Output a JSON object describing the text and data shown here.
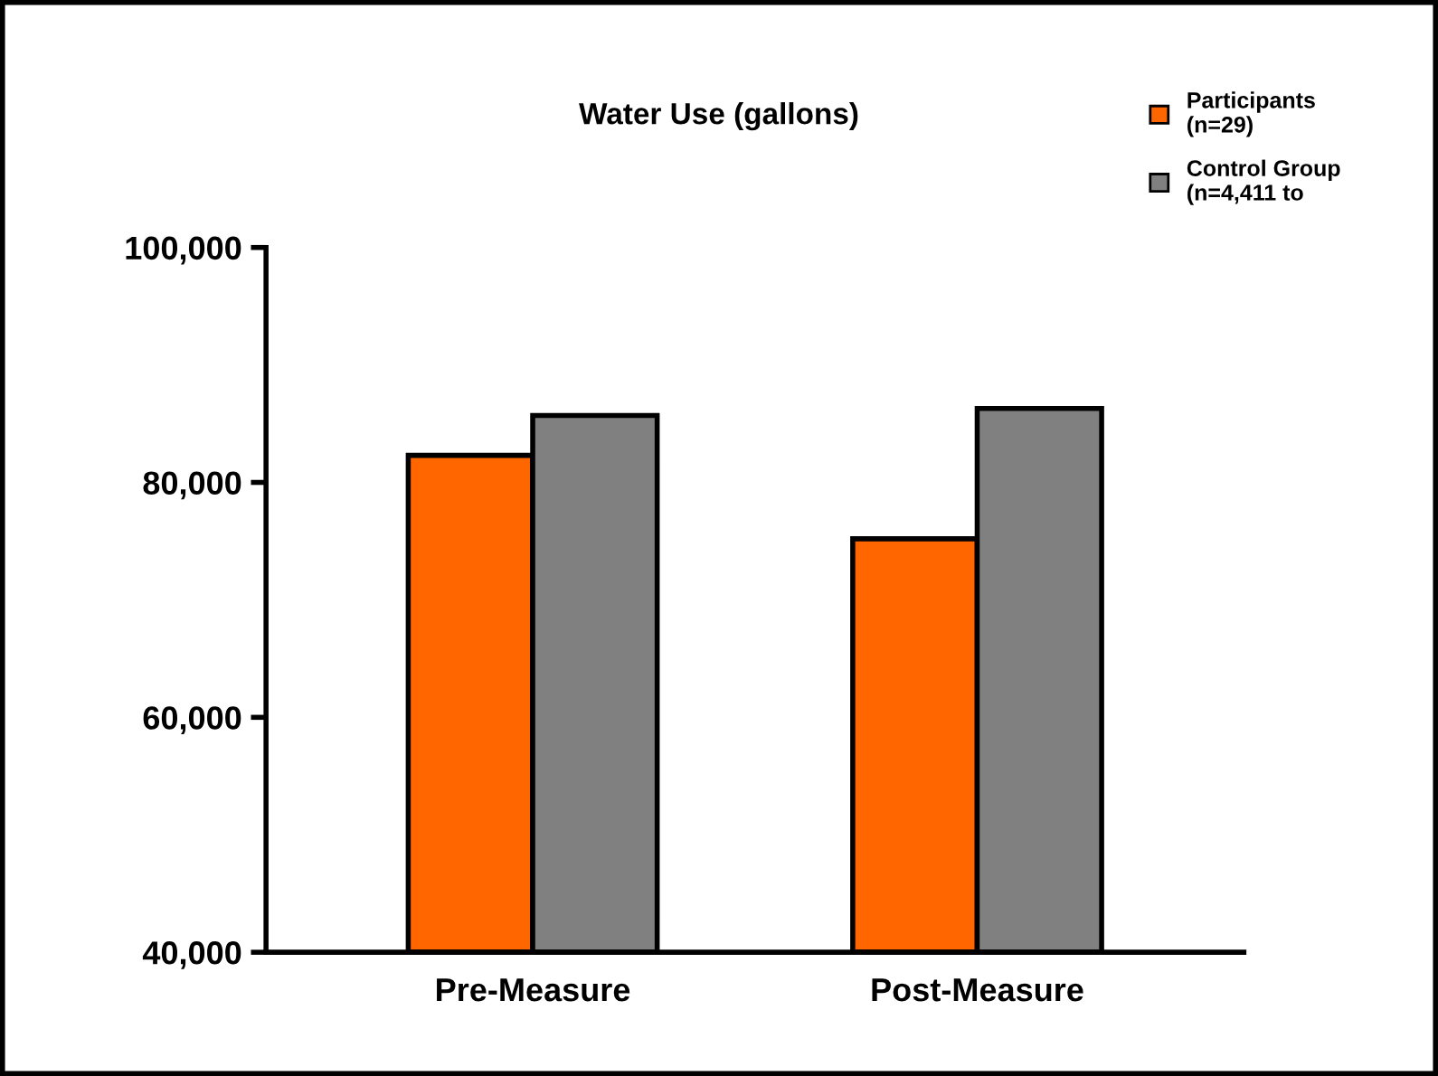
{
  "chart_data": {
    "type": "bar",
    "title": "Water Use (gallons)",
    "categories": [
      "Pre-Measure",
      "Post-Measure"
    ],
    "series": [
      {
        "name": "Participants\n(n=29)",
        "color": "#ff6600",
        "values": [
          82300,
          75200
        ]
      },
      {
        "name": "Control Group\n(n=4,411 to",
        "color": "#808080",
        "values": [
          85700,
          86300
        ]
      }
    ],
    "ylim": [
      40000,
      100000
    ],
    "yticks": [
      {
        "value": 40000,
        "label": "40,000"
      },
      {
        "value": 60000,
        "label": "60,000"
      },
      {
        "value": 80000,
        "label": "80,000"
      },
      {
        "value": 100000,
        "label": "100,000"
      }
    ],
    "grid": false,
    "legend": "top right"
  }
}
